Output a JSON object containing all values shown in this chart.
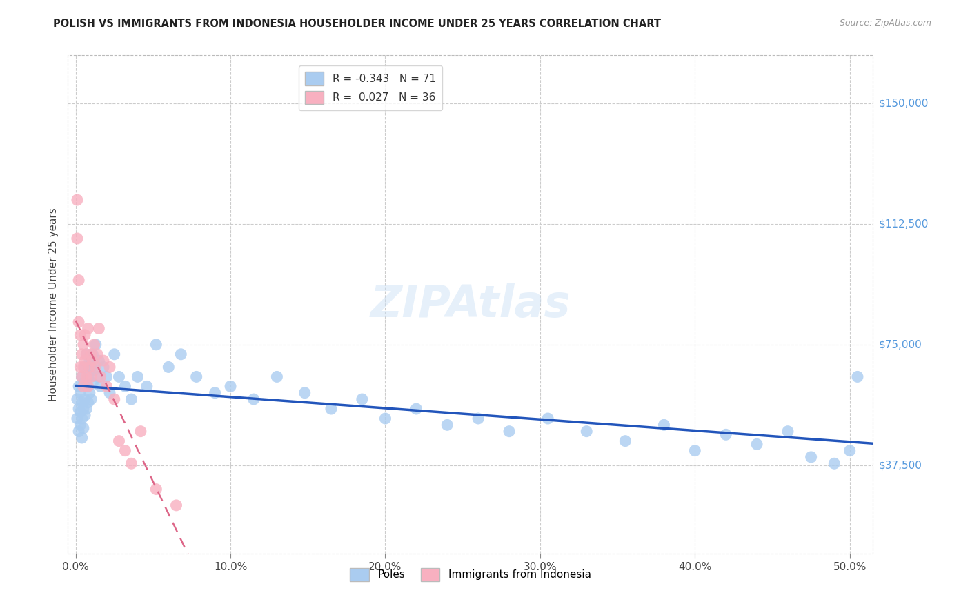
{
  "title": "POLISH VS IMMIGRANTS FROM INDONESIA HOUSEHOLDER INCOME UNDER 25 YEARS CORRELATION CHART",
  "source": "Source: ZipAtlas.com",
  "ylabel": "Householder Income Under 25 years",
  "xlabel_ticks": [
    "0.0%",
    "10.0%",
    "20.0%",
    "30.0%",
    "40.0%",
    "50.0%"
  ],
  "xlabel_vals": [
    0.0,
    0.1,
    0.2,
    0.3,
    0.4,
    0.5
  ],
  "ytick_labels": [
    "$37,500",
    "$75,000",
    "$112,500",
    "$150,000"
  ],
  "ytick_vals": [
    37500,
    75000,
    112500,
    150000
  ],
  "ymin": 10000,
  "ymax": 165000,
  "xmin": -0.005,
  "xmax": 0.515,
  "poles_R": -0.343,
  "poles_N": 71,
  "indonesia_R": 0.027,
  "indonesia_N": 36,
  "poles_color": "#aaccf0",
  "poles_line_color": "#2255bb",
  "indonesia_color": "#f8b0c0",
  "indonesia_line_color": "#dd6688",
  "watermark": "ZIPAtlas",
  "legend_R1": "R = -0.343",
  "legend_N1": "N = 71",
  "legend_R2": "R =  0.027",
  "legend_N2": "N = 36",
  "poles_x": [
    0.001,
    0.001,
    0.002,
    0.002,
    0.002,
    0.003,
    0.003,
    0.003,
    0.004,
    0.004,
    0.004,
    0.004,
    0.005,
    0.005,
    0.005,
    0.006,
    0.006,
    0.006,
    0.007,
    0.007,
    0.007,
    0.008,
    0.008,
    0.009,
    0.009,
    0.01,
    0.01,
    0.011,
    0.011,
    0.012,
    0.013,
    0.014,
    0.015,
    0.016,
    0.018,
    0.02,
    0.022,
    0.025,
    0.028,
    0.032,
    0.036,
    0.04,
    0.046,
    0.052,
    0.06,
    0.068,
    0.078,
    0.09,
    0.1,
    0.115,
    0.13,
    0.148,
    0.165,
    0.185,
    0.2,
    0.22,
    0.24,
    0.26,
    0.28,
    0.305,
    0.33,
    0.355,
    0.38,
    0.4,
    0.42,
    0.44,
    0.46,
    0.475,
    0.49,
    0.5,
    0.505
  ],
  "poles_y": [
    58000,
    52000,
    62000,
    55000,
    48000,
    60000,
    54000,
    50000,
    65000,
    57000,
    52000,
    46000,
    63000,
    55000,
    49000,
    68000,
    58000,
    53000,
    72000,
    62000,
    55000,
    65000,
    57000,
    70000,
    60000,
    68000,
    58000,
    72000,
    63000,
    67000,
    75000,
    65000,
    70000,
    62000,
    68000,
    65000,
    60000,
    72000,
    65000,
    62000,
    58000,
    65000,
    62000,
    75000,
    68000,
    72000,
    65000,
    60000,
    62000,
    58000,
    65000,
    60000,
    55000,
    58000,
    52000,
    55000,
    50000,
    52000,
    48000,
    52000,
    48000,
    45000,
    50000,
    42000,
    47000,
    44000,
    48000,
    40000,
    38000,
    42000,
    65000
  ],
  "indonesia_x": [
    0.001,
    0.001,
    0.002,
    0.002,
    0.003,
    0.003,
    0.004,
    0.004,
    0.005,
    0.005,
    0.005,
    0.006,
    0.006,
    0.007,
    0.007,
    0.008,
    0.008,
    0.009,
    0.01,
    0.01,
    0.011,
    0.012,
    0.013,
    0.014,
    0.015,
    0.016,
    0.018,
    0.02,
    0.022,
    0.025,
    0.028,
    0.032,
    0.036,
    0.042,
    0.052,
    0.065
  ],
  "indonesia_y": [
    120000,
    108000,
    95000,
    82000,
    78000,
    68000,
    72000,
    65000,
    75000,
    68000,
    62000,
    78000,
    70000,
    65000,
    72000,
    80000,
    62000,
    68000,
    72000,
    65000,
    70000,
    75000,
    68000,
    72000,
    80000,
    65000,
    70000,
    62000,
    68000,
    58000,
    45000,
    42000,
    38000,
    48000,
    30000,
    25000
  ]
}
